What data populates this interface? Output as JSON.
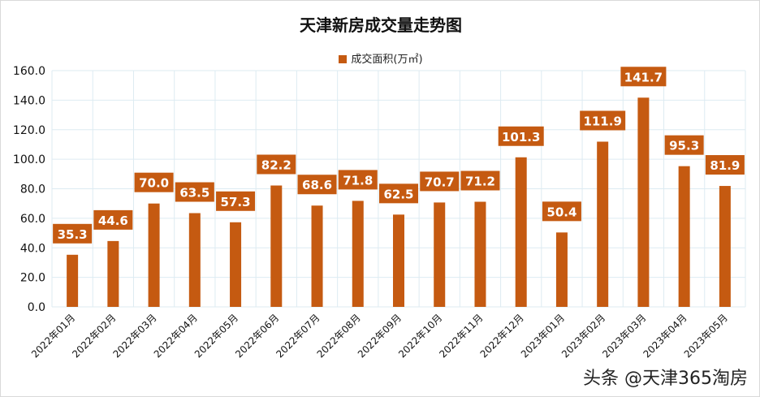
{
  "chart_data": {
    "type": "bar",
    "title": "天津新房成交量走势图",
    "categories": [
      "2022年01月",
      "2022年02月",
      "2022年03月",
      "2022年04月",
      "2022年05月",
      "2022年06月",
      "2022年07月",
      "2022年08月",
      "2022年09月",
      "2022年10月",
      "2022年11月",
      "2022年12月",
      "2023年01月",
      "2023年02月",
      "2023年03月",
      "2023年04月",
      "2023年05月"
    ],
    "series": [
      {
        "name": "成交面积(万㎡)",
        "values": [
          35.3,
          44.6,
          70.0,
          63.5,
          57.3,
          82.2,
          68.6,
          71.8,
          62.5,
          70.7,
          71.2,
          101.3,
          50.4,
          111.9,
          141.7,
          95.3,
          81.9
        ]
      }
    ],
    "xlabel": "",
    "ylabel": "",
    "ylim": [
      0,
      160
    ],
    "yticks": [
      0,
      20,
      40,
      60,
      80,
      100,
      120,
      140,
      160
    ],
    "grid": true,
    "legend": "top",
    "colors": {
      "bar": "#C55A11",
      "grid": "#DDEBF2",
      "label_text": "#FFFFFF"
    }
  },
  "watermark": "头条 @天津365淘房"
}
